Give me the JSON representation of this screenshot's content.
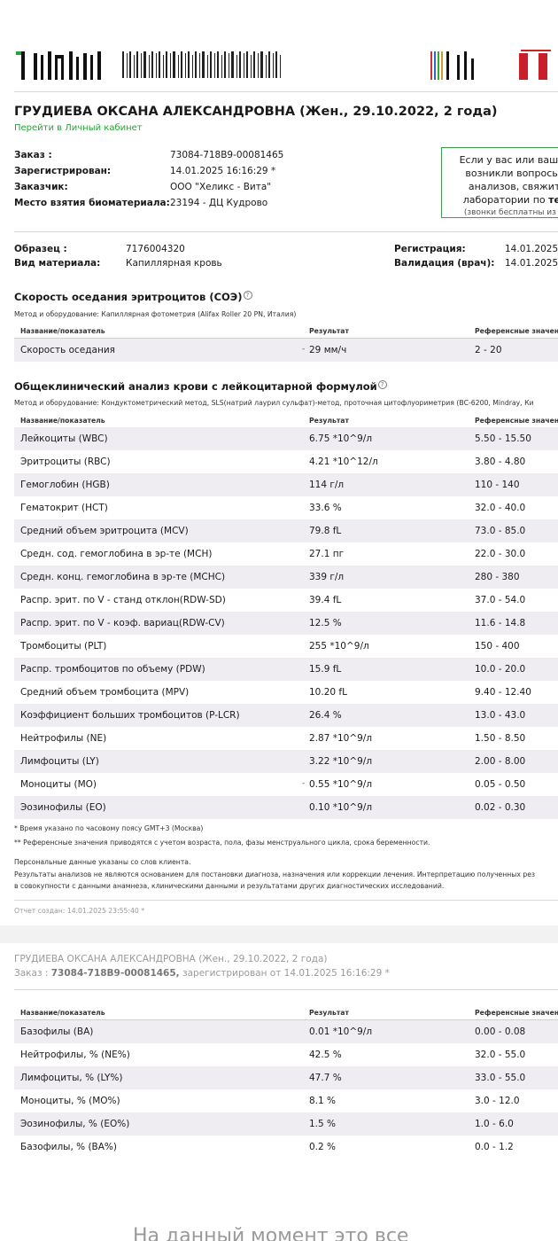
{
  "patient": {
    "title": "ГРУДИЕВА ОКСАНА АЛЕКСАНДРОВНА (Жен., 29.10.2022, 2 года)",
    "cabinet_link": "Перейти в Личный кабинет"
  },
  "order_info": [
    {
      "label": "Заказ     :",
      "value": "73084-718B9-00081465"
    },
    {
      "label": "Зарегистрирован:",
      "value": "14.01.2025 16:16:29 *"
    },
    {
      "label": "Заказчик:",
      "value": "ООО \"Хеликс - Вита\""
    },
    {
      "label": "Место взятия биоматериала:",
      "value": "23194 - ДЦ Кудрово"
    }
  ],
  "infobox": {
    "line1": "Если у вас или вашего",
    "line2": "возникли вопросы п",
    "line3": "анализов, свяжите",
    "line4_prefix": "лаборатории по ",
    "line4_bold": "тел.",
    "line5": "(звонки бесплатны из лю"
  },
  "sample": {
    "sample_label": "Образец     :",
    "sample_value": "7176004320",
    "material_label": "Вид материала:",
    "material_value": "Капиллярная кровь",
    "reg_label": "Регистрация:",
    "reg_value": "14.01.2025",
    "valid_label": "Валидация (врач):",
    "valid_value": "14.01.2025"
  },
  "columns": {
    "name": "Название/показатель",
    "result": "Результат",
    "reference": "Референсные значен"
  },
  "section1": {
    "title": "Скорость оседания эритроцитов (СОЭ)",
    "method": "Метод и оборудование: Капиллярная фотометрия (Alifax Roller 20 PN, Италия)",
    "rows": [
      {
        "name": "Скорость оседания",
        "result": "29 мм/ч",
        "ref": "2 - 20",
        "flag": "-"
      }
    ]
  },
  "section2": {
    "title": "Общеклинический анализ крови с лейкоцитарной формулой",
    "method": "Метод и оборудование: Кондуктометрический метод, SLS(натрий лаурил сульфат)-метод, проточная цитофлуориметрия (ВС-6200, Mindray, Ки",
    "rows": [
      {
        "name": "Лейкоциты (WBC)",
        "result": "6.75 *10^9/л",
        "ref": "5.50 - 15.50",
        "flag": ""
      },
      {
        "name": "Эритроциты (RBC)",
        "result": "4.21 *10^12/л",
        "ref": "3.80 - 4.80",
        "flag": ""
      },
      {
        "name": "Гемоглобин (HGB)",
        "result": "114 г/л",
        "ref": "110 - 140",
        "flag": ""
      },
      {
        "name": "Гематокрит (HCT)",
        "result": "33.6 %",
        "ref": "32.0 - 40.0",
        "flag": ""
      },
      {
        "name": "Средний объем эритроцита (MCV)",
        "result": "79.8 fL",
        "ref": "73.0 - 85.0",
        "flag": ""
      },
      {
        "name": "Средн. сод. гемоглобина в эр-те (MCH)",
        "result": "27.1 пг",
        "ref": "22.0 - 30.0",
        "flag": ""
      },
      {
        "name": "Средн. конц. гемоглобина в эр-те (MCHC)",
        "result": "339 г/л",
        "ref": "280 - 380",
        "flag": ""
      },
      {
        "name": "Распр. эрит. по V - станд отклон(RDW-SD)",
        "result": "39.4 fL",
        "ref": "37.0 - 54.0",
        "flag": ""
      },
      {
        "name": "Распр. эрит. по V - коэф. вариац(RDW-CV)",
        "result": "12.5 %",
        "ref": "11.6 - 14.8",
        "flag": ""
      },
      {
        "name": "Тромбоциты (PLT)",
        "result": "255 *10^9/л",
        "ref": "150 - 400",
        "flag": ""
      },
      {
        "name": "Распр. тромбоцитов по объему (PDW)",
        "result": "15.9 fL",
        "ref": "10.0 - 20.0",
        "flag": ""
      },
      {
        "name": "Средний объем тромбоцита (MPV)",
        "result": "10.20 fL",
        "ref": "9.40 - 12.40",
        "flag": ""
      },
      {
        "name": "Коэффициент больших тромбоцитов (P-LCR)",
        "result": "26.4 %",
        "ref": "13.0 - 43.0",
        "flag": ""
      },
      {
        "name": "Нейтрофилы (NE)",
        "result": "2.87 *10^9/л",
        "ref": "1.50 - 8.50",
        "flag": ""
      },
      {
        "name": "Лимфоциты (LY)",
        "result": "3.22 *10^9/л",
        "ref": "2.00 - 8.00",
        "flag": ""
      },
      {
        "name": "Моноциты (MO)",
        "result": "0.55 *10^9/л",
        "ref": "0.05 - 0.50",
        "flag": "-"
      },
      {
        "name": "Эозинофилы (EO)",
        "result": "0.10 *10^9/л",
        "ref": "0.02 - 0.30",
        "flag": ""
      }
    ]
  },
  "notes": {
    "n1": "* Время указано по часовому поясу GMT+3 (Москва)",
    "n2": "** Референсные значения приводятся с учетом возраста, пола, фазы менструального цикла, срока беременности.",
    "n3": "Персональные данные указаны со слов клиента.",
    "n4": "Результаты анализов не являются основанием для постановки диагноза, назначения или коррекции лечения. Интерпретацию полученных рез",
    "n5": "в совокупности с данными анамнеза, клиническими данными и результатами других диагностических исследований.",
    "created": "Отчет создан: 14.01.2025 23:55:40 *"
  },
  "page2": {
    "patient": "ГРУДИЕВА ОКСАНА АЛЕКСАНДРОВНА (Жен., 29.10.2022, 2 года)",
    "order_prefix": "Заказ   :  ",
    "order_number": "73084-718B9-00081465,",
    "order_suffix": " зарегистрирован от 14.01.2025 16:16:29 *",
    "rows": [
      {
        "name": "Базофилы (BA)",
        "result": "0.01 *10^9/л",
        "ref": "0.00 - 0.08"
      },
      {
        "name": "Нейтрофилы, % (NE%)",
        "result": "42.5 %",
        "ref": "32.0 - 55.0"
      },
      {
        "name": "Лимфоциты, % (LY%)",
        "result": "47.7 %",
        "ref": "33.0 - 55.0"
      },
      {
        "name": "Моноциты, % (MO%)",
        "result": "8.1 %",
        "ref": "3.0 - 12.0"
      },
      {
        "name": "Эозинофилы, % (EO%)",
        "result": "1.5 %",
        "ref": "1.0 - 6.0"
      },
      {
        "name": "Базофилы, % (BA%)",
        "result": "0.2 %",
        "ref": "0.0 - 1.2"
      }
    ]
  },
  "bottom_text": "На данный момент это все"
}
